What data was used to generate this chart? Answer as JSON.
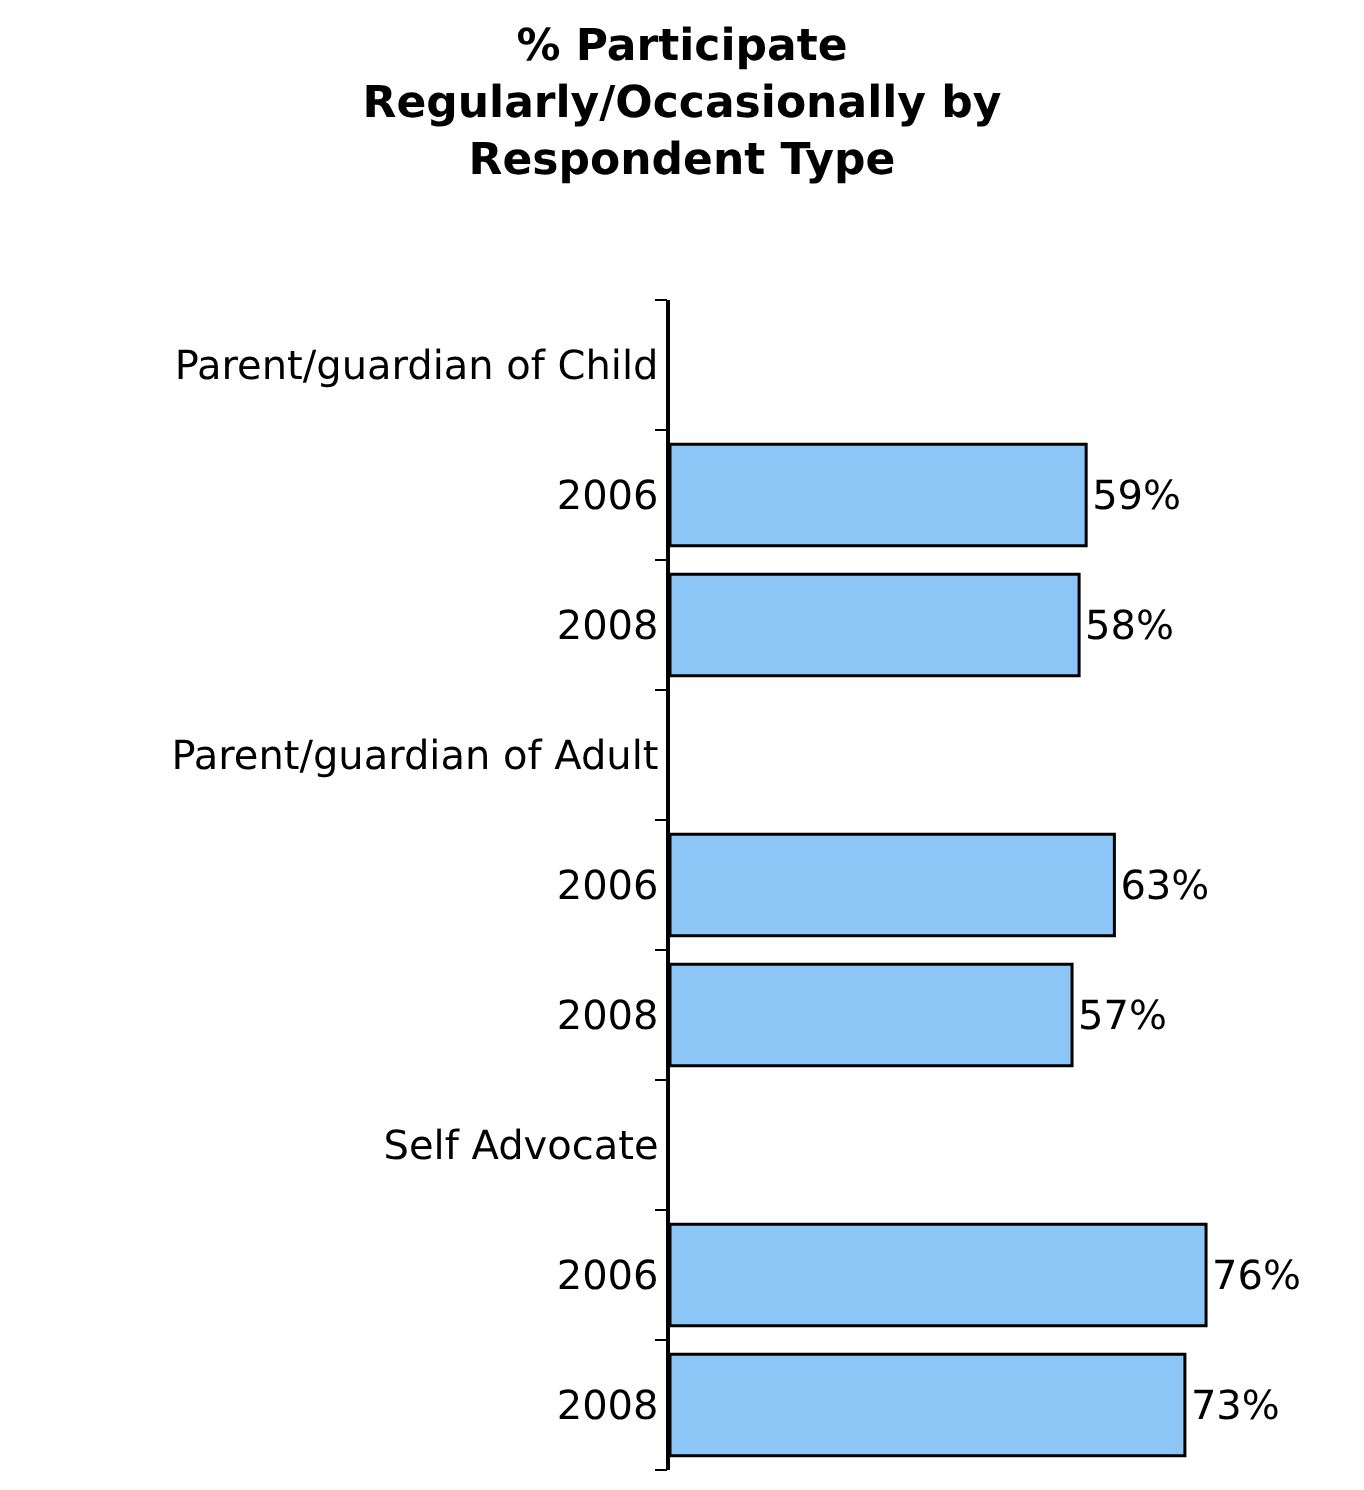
{
  "chart_data": {
    "type": "bar",
    "orientation": "horizontal",
    "title": "% Participate\nRegularly/Occasionally by\nRespondent Type",
    "categories": [
      "Parent/guardian of Child",
      "2006",
      "2008",
      "Parent/guardian of Adult",
      "2006",
      "2008",
      "Self Advocate",
      "2006",
      "2008"
    ],
    "values": [
      null,
      59,
      58,
      null,
      63,
      57,
      null,
      76,
      73
    ],
    "value_labels": [
      null,
      "59%",
      "58%",
      null,
      "63%",
      "57%",
      null,
      "76%",
      "73%"
    ],
    "color": "#8cc6f7",
    "grid": false,
    "legend": false
  }
}
